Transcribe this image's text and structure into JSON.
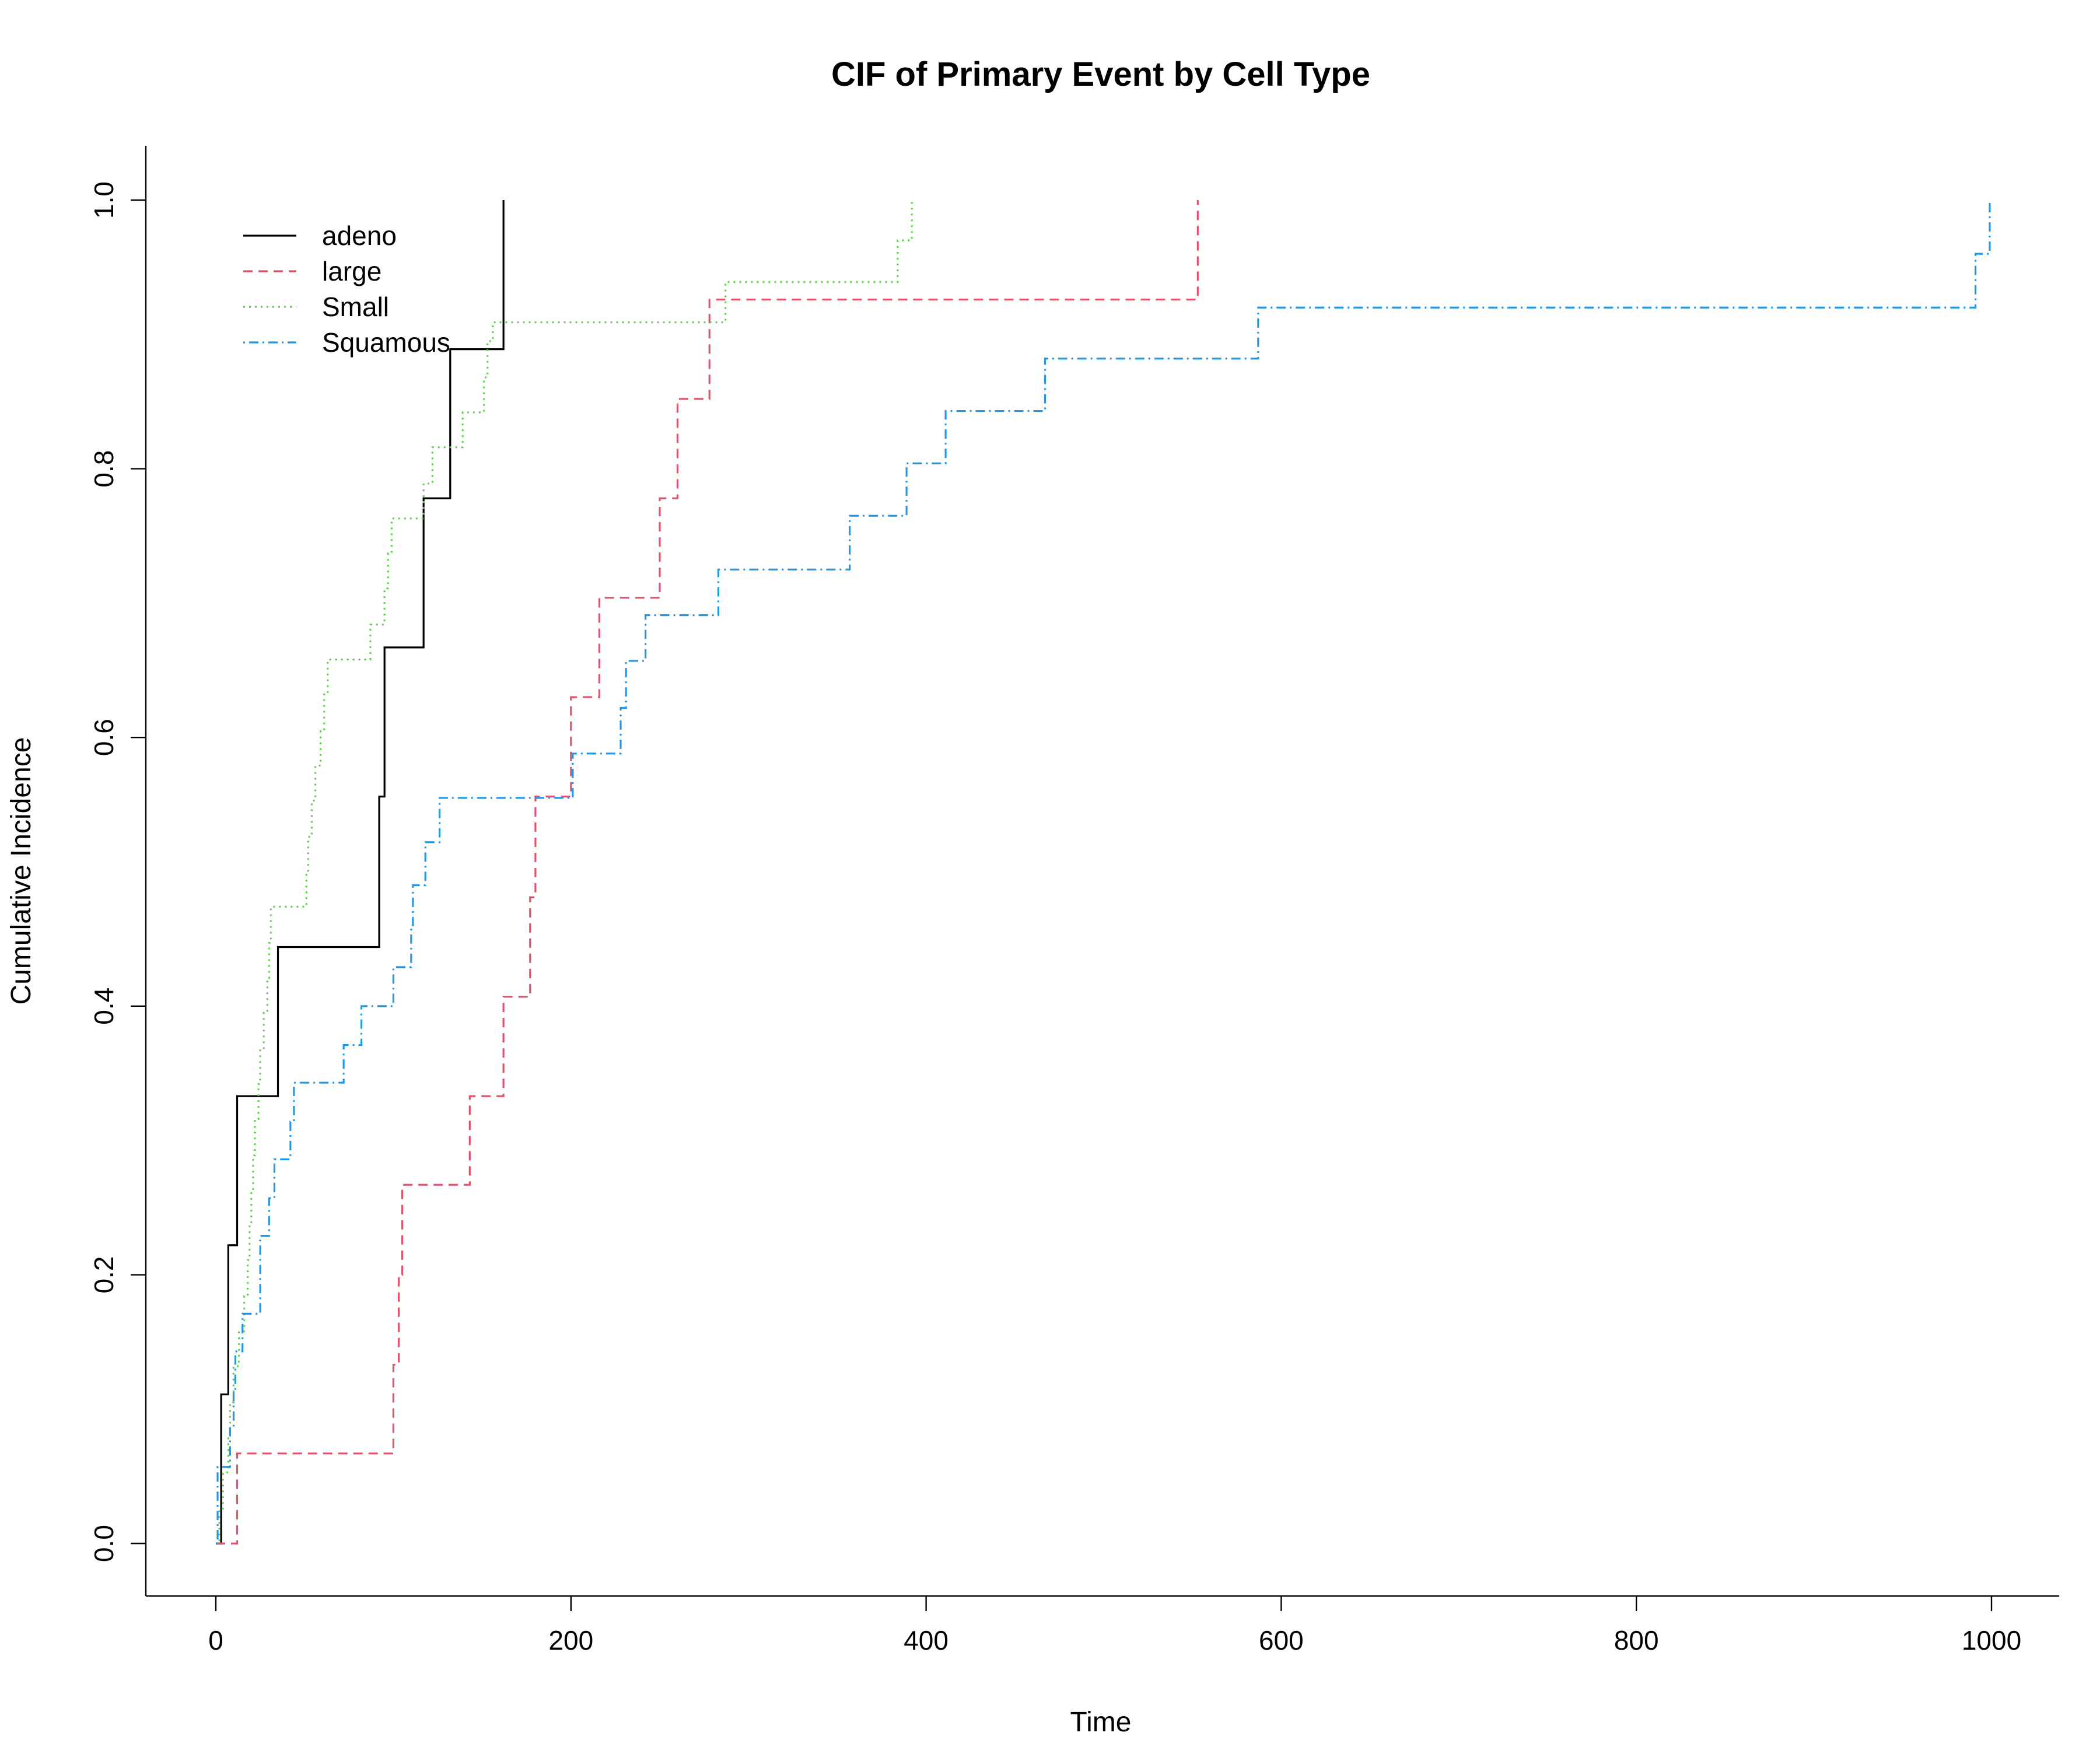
{
  "chart_data": {
    "type": "line",
    "step": true,
    "title": "CIF of Primary Event by Cell Type",
    "xlabel": "Time",
    "ylabel": "Cumulative Incidence",
    "xlim": [
      0,
      1000
    ],
    "ylim": [
      0,
      1
    ],
    "xticks": [
      "0",
      "200",
      "400",
      "600",
      "800",
      "1000"
    ],
    "yticks": [
      "0.0",
      "0.2",
      "0.4",
      "0.6",
      "0.8",
      "1.0"
    ],
    "grid": false,
    "legend_position": "top-left",
    "series": [
      {
        "name": "adeno",
        "color": "#000000",
        "dash": "solid",
        "x": [
          3,
          7,
          12,
          35,
          92,
          95,
          117,
          132,
          162
        ],
        "y": [
          0.111,
          0.222,
          0.333,
          0.444,
          0.556,
          0.667,
          0.778,
          0.889,
          1.0
        ]
      },
      {
        "name": "large",
        "color": "#df536b",
        "dash": "dashed",
        "x": [
          12,
          100,
          103,
          105,
          143,
          162,
          177,
          180,
          182,
          200,
          216,
          250,
          260,
          278,
          553
        ],
        "y": [
          0.067,
          0.133,
          0.2,
          0.267,
          0.333,
          0.407,
          0.481,
          0.556,
          0.556,
          0.63,
          0.704,
          0.778,
          0.852,
          0.926,
          1.0
        ]
      },
      {
        "name": "Small",
        "color": "#61d04f",
        "dash": "dotted",
        "x": [
          2,
          4,
          7,
          8,
          10,
          13,
          16,
          18,
          19,
          20,
          21,
          22,
          24,
          25,
          27,
          29,
          30,
          31,
          51,
          52,
          54,
          56,
          59,
          61,
          63,
          87,
          95,
          97,
          99,
          103,
          117,
          122,
          126,
          139,
          151,
          153,
          156,
          287,
          384,
          392
        ],
        "y": [
          0.026,
          0.053,
          0.079,
          0.105,
          0.132,
          0.158,
          0.184,
          0.211,
          0.237,
          0.263,
          0.289,
          0.316,
          0.342,
          0.368,
          0.395,
          0.421,
          0.447,
          0.474,
          0.5,
          0.526,
          0.553,
          0.579,
          0.605,
          0.632,
          0.658,
          0.684,
          0.711,
          0.737,
          0.763,
          0.763,
          0.789,
          0.816,
          0.816,
          0.842,
          0.868,
          0.895,
          0.909,
          0.939,
          0.97,
          1.0
        ]
      },
      {
        "name": "Squamous",
        "color": "#2297e6",
        "dash": "dotdash",
        "x": [
          1,
          8,
          10,
          11,
          15,
          25,
          30,
          33,
          42,
          44,
          72,
          82,
          100,
          110,
          111,
          118,
          126,
          201,
          228,
          231,
          242,
          283,
          357,
          389,
          411,
          467,
          587,
          991,
          999
        ],
        "y": [
          0.057,
          0.086,
          0.114,
          0.143,
          0.171,
          0.229,
          0.257,
          0.286,
          0.314,
          0.343,
          0.371,
          0.4,
          0.429,
          0.457,
          0.49,
          0.522,
          0.555,
          0.588,
          0.622,
          0.657,
          0.691,
          0.725,
          0.765,
          0.804,
          0.843,
          0.882,
          0.92,
          0.96,
          1.0
        ]
      }
    ]
  }
}
